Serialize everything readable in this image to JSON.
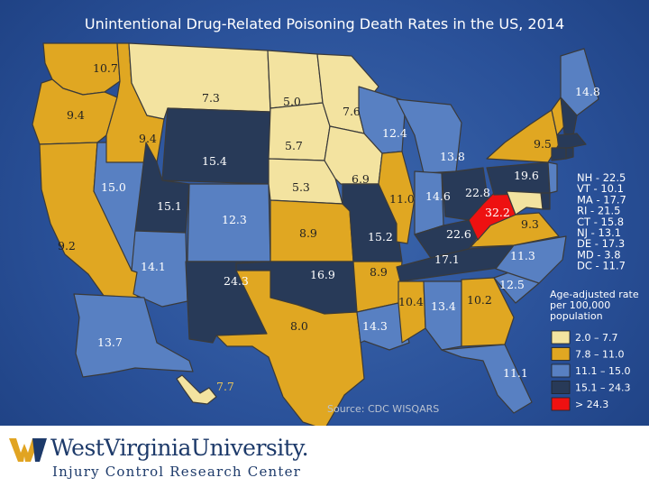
{
  "title": "Unintentional Drug-Related Poisoning Death Rates in the US, 2014",
  "colors": {
    "bin1": "#f3e3a0",
    "bin2": "#e0a722",
    "bin3": "#5880c2",
    "bin4": "#283a58",
    "bin5": "#ee1111",
    "background": "#2a5199"
  },
  "state_rates": {
    "WA": "10.7",
    "OR": "9.4",
    "CA": "9.2",
    "NV": "15.0",
    "ID": "9.4",
    "MT": "7.3",
    "WY": "15.4",
    "UT": "15.1",
    "AZ": "14.1",
    "CO": "12.3",
    "NM": "24.3",
    "ND": "5.0",
    "SD": "5.7",
    "NE": "5.3",
    "KS": "8.9",
    "OK": "16.9",
    "TX": "8.0",
    "MN": "7.6",
    "IA": "6.9",
    "MO": "15.2",
    "AR": "8.9",
    "LA": "14.3",
    "WI": "12.4",
    "IL": "11.0",
    "MI": "13.8",
    "IN": "14.6",
    "OH": "22.8",
    "KY": "22.6",
    "TN": "17.1",
    "MS": "10.4",
    "AL": "13.4",
    "GA": "10.2",
    "FL": "11.1",
    "SC": "12.5",
    "NC": "11.3",
    "VA": "9.3",
    "WV": "32.2",
    "PA": "19.6",
    "NY": "9.5",
    "ME": "14.8",
    "AK": "13.7",
    "HI": "7.7"
  },
  "northeast_list": [
    {
      "abbr": "NH",
      "rate": "22.5"
    },
    {
      "abbr": "VT",
      "rate": "10.1"
    },
    {
      "abbr": "MA",
      "rate": "17.7"
    },
    {
      "abbr": "RI",
      "rate": "21.5"
    },
    {
      "abbr": "CT",
      "rate": "15.8"
    },
    {
      "abbr": "NJ",
      "rate": "13.1"
    },
    {
      "abbr": "DE",
      "rate": "17.3"
    },
    {
      "abbr": "MD",
      "rate": "3.8"
    },
    {
      "abbr": "DC",
      "rate": "11.7"
    }
  ],
  "legend": {
    "title_line1": "Age-adjusted rate",
    "title_line2": "per 100,000",
    "title_line3": "population",
    "items": [
      {
        "label": "2.0 – 7.7"
      },
      {
        "label": "7.8 – 11.0"
      },
      {
        "label": "11.1 – 15.0"
      },
      {
        "label": "15.1 – 24.3"
      },
      {
        "label": "> 24.3"
      }
    ]
  },
  "source": "Source: CDC WISQARS",
  "footer": {
    "university": "WestVirginiaUniversity.",
    "center": "Injury Control Research Center"
  }
}
